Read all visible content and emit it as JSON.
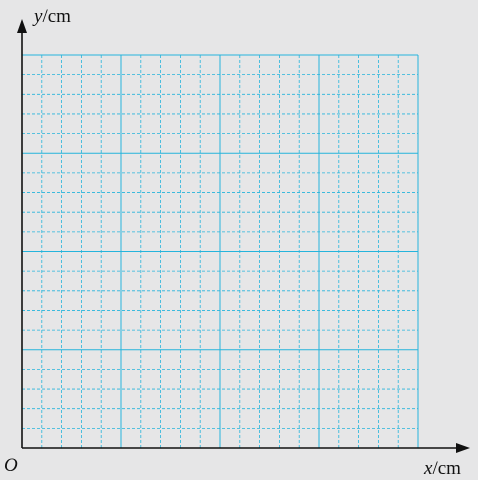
{
  "axes": {
    "x_label_var": "x",
    "x_label_unit": "/cm",
    "y_label_var": "y",
    "y_label_unit": "/cm",
    "origin_label": "O"
  },
  "grid": {
    "major_columns": 4,
    "major_rows": 4,
    "minor_per_major": 5,
    "major_color": "#25b4dc",
    "minor_color": "#25b4dc",
    "axis_color": "#111111",
    "background_color": "#e6e6e7"
  }
}
